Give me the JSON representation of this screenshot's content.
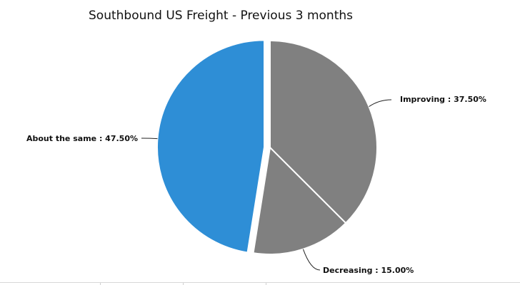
{
  "chart_data": {
    "type": "pie",
    "title": "Southbound US Freight - Previous 3 months",
    "slices": [
      {
        "label": "Improving",
        "value": 37.5,
        "display": "Improving : 37.50%",
        "color": "#808080",
        "exploded": false
      },
      {
        "label": "Decreasing",
        "value": 15.0,
        "display": "Decreasing : 15.00%",
        "color": "#808080",
        "exploded": false
      },
      {
        "label": "About the same",
        "value": 47.5,
        "display": "About the same : 47.50%",
        "color": "#2e8ed6",
        "exploded": true
      }
    ],
    "start_angle": "12 o'clock",
    "direction": "clockwise",
    "legend": "none",
    "data_labels": "outside with leader lines"
  }
}
